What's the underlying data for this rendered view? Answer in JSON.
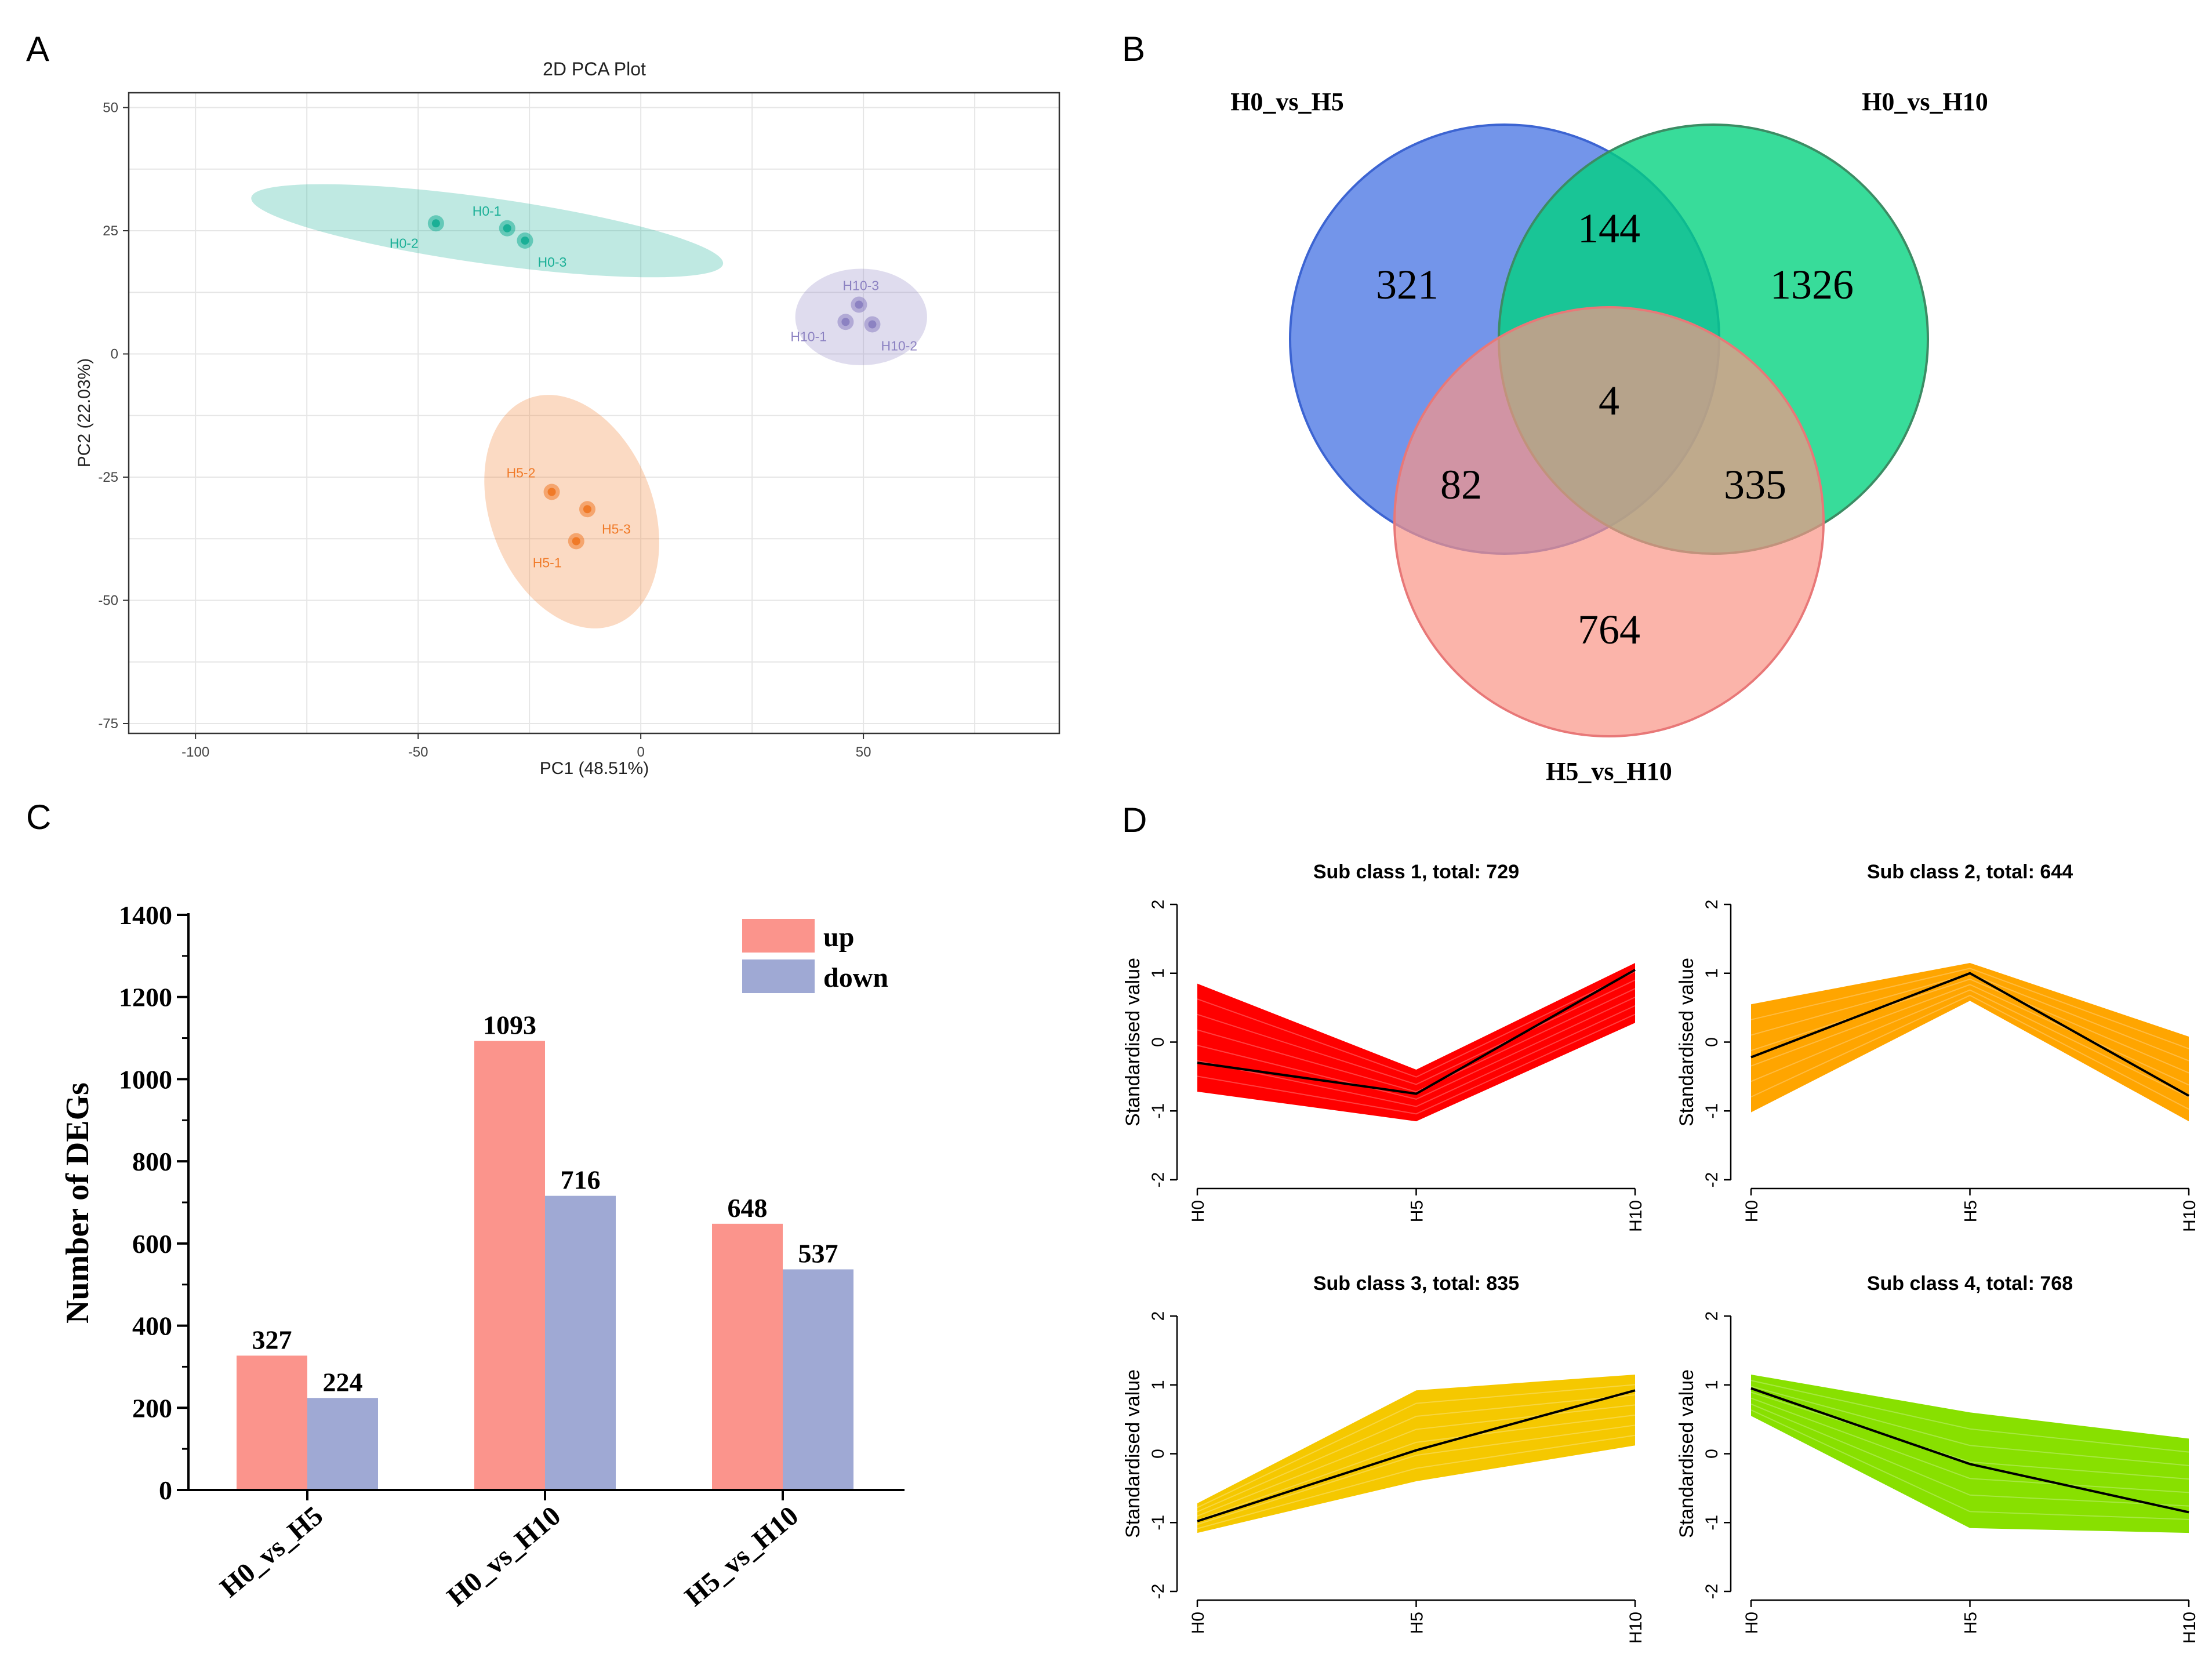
{
  "panel_labels": {
    "a": "A",
    "b": "B",
    "c": "C",
    "d": "D"
  },
  "colors": {
    "h0": "#1aaf96",
    "h5": "#f07a28",
    "h10": "#8c82c2",
    "venn_a": "#5a82e6",
    "venn_b": "#00d27d",
    "venn_c": "#fa9486",
    "up": "#fb948c",
    "down": "#9fa9d4",
    "sub1": "#ff0000",
    "sub2": "#ffa500",
    "sub3": "#f5c800",
    "sub4": "#88e000"
  },
  "chart_data": [
    {
      "panel": "A",
      "type": "scatter",
      "title": "2D PCA Plot",
      "xlabel": "PC1 (48.51%)",
      "ylabel": "PC2 (22.03%)",
      "xlim": [
        -115,
        94
      ],
      "ylim": [
        -77,
        53
      ],
      "xticks": [
        -100,
        -50,
        0,
        50
      ],
      "yticks": [
        50,
        25,
        0,
        -25,
        -50,
        -75
      ],
      "groups": [
        {
          "name": "H0",
          "color": "#1aaf96",
          "points": [
            {
              "label": "H0-1",
              "x": -30,
              "y": 25.5
            },
            {
              "label": "H0-2",
              "x": -46,
              "y": 26.5
            },
            {
              "label": "H0-3",
              "x": -26,
              "y": 23
            }
          ],
          "ellipse": {
            "cx": -34.5,
            "cy": 25,
            "rx": 53.5,
            "ry": 6.7,
            "angle": 8
          }
        },
        {
          "name": "H5",
          "color": "#f07a28",
          "points": [
            {
              "label": "H5-1",
              "x": -14.5,
              "y": -38
            },
            {
              "label": "H5-2",
              "x": -20,
              "y": -28
            },
            {
              "label": "H5-3",
              "x": -12,
              "y": -31.5
            }
          ],
          "ellipse": {
            "cx": -15.5,
            "cy": -32,
            "rx": 27.2,
            "ry": 16.5,
            "angle": 69
          }
        },
        {
          "name": "H10",
          "color": "#8c82c2",
          "points": [
            {
              "label": "H10-1",
              "x": 46,
              "y": 6.5
            },
            {
              "label": "H10-2",
              "x": 52,
              "y": 6
            },
            {
              "label": "H10-3",
              "x": 49,
              "y": 10
            }
          ],
          "ellipse": {
            "cx": 49.5,
            "cy": 7.5,
            "rx": 14.8,
            "ry": 9.8,
            "angle": 0
          }
        }
      ]
    },
    {
      "panel": "B",
      "type": "venn",
      "sets": [
        "H0_vs_H5",
        "H0_vs_H10",
        "H5_vs_H10"
      ],
      "regions": [
        {
          "sets": [
            "H0_vs_H5"
          ],
          "value": 321
        },
        {
          "sets": [
            "H0_vs_H10"
          ],
          "value": 1326
        },
        {
          "sets": [
            "H5_vs_H10"
          ],
          "value": 764
        },
        {
          "sets": [
            "H0_vs_H5",
            "H0_vs_H10"
          ],
          "value": 144
        },
        {
          "sets": [
            "H0_vs_H5",
            "H5_vs_H10"
          ],
          "value": 82
        },
        {
          "sets": [
            "H0_vs_H10",
            "H5_vs_H10"
          ],
          "value": 335
        },
        {
          "sets": [
            "H0_vs_H5",
            "H0_vs_H10",
            "H5_vs_H10"
          ],
          "value": 4
        }
      ]
    },
    {
      "panel": "C",
      "type": "bar",
      "categories": [
        "H0_vs_H5",
        "H0_vs_H10",
        "H5_vs_H10"
      ],
      "series": [
        {
          "name": "up",
          "values": [
            327,
            1093,
            648
          ]
        },
        {
          "name": "down",
          "values": [
            224,
            716,
            537
          ]
        }
      ],
      "ylabel": "Number of DEGs",
      "ylim": [
        0,
        1400
      ],
      "yticks": [
        0,
        200,
        400,
        600,
        800,
        1000,
        1200,
        1400
      ],
      "legend": "top-right"
    },
    {
      "panel": "D",
      "type": "line",
      "x": [
        "H0",
        "H5",
        "H10"
      ],
      "ylabel": "Standardised value",
      "ylim": [
        -2,
        2
      ],
      "yticks": [
        2,
        1,
        0,
        -1,
        -2
      ],
      "subplots": [
        {
          "title": "Sub class 1, total: 729",
          "color": "#ff0000",
          "mean": [
            -0.3,
            -0.75,
            1.05
          ],
          "band_upper": [
            0.85,
            -0.4,
            1.15
          ],
          "band_lower": [
            -0.72,
            -1.15,
            0.28
          ],
          "band_knee": [
            0.25,
            0.22,
            -0.8
          ]
        },
        {
          "title": "Sub class 2, total: 644",
          "color": "#ffa500",
          "mean": [
            -0.22,
            1.0,
            -0.78
          ],
          "band_upper": [
            0.55,
            1.15,
            0.08
          ],
          "band_lower": [
            -1.02,
            0.6,
            -1.15
          ],
          "band_knee": [
            0.6,
            0.5,
            0.6
          ]
        },
        {
          "title": "Sub class 3, total: 835",
          "color": "#f5c800",
          "mean": [
            -0.98,
            0.05,
            0.92
          ],
          "band_upper": [
            -0.72,
            0.92,
            1.15
          ],
          "band_lower": [
            -1.15,
            -0.4,
            0.12
          ],
          "band_knee": [
            0.05,
            0.62,
            0.5
          ]
        },
        {
          "title": "Sub class 4, total: 768",
          "color": "#88e000",
          "mean": [
            0.95,
            -0.15,
            -0.85
          ],
          "band_upper": [
            1.15,
            0.6,
            0.22
          ],
          "band_lower": [
            0.55,
            -1.08,
            -1.15
          ],
          "band_knee": [
            0.05,
            -0.5,
            0.55
          ]
        }
      ]
    }
  ]
}
